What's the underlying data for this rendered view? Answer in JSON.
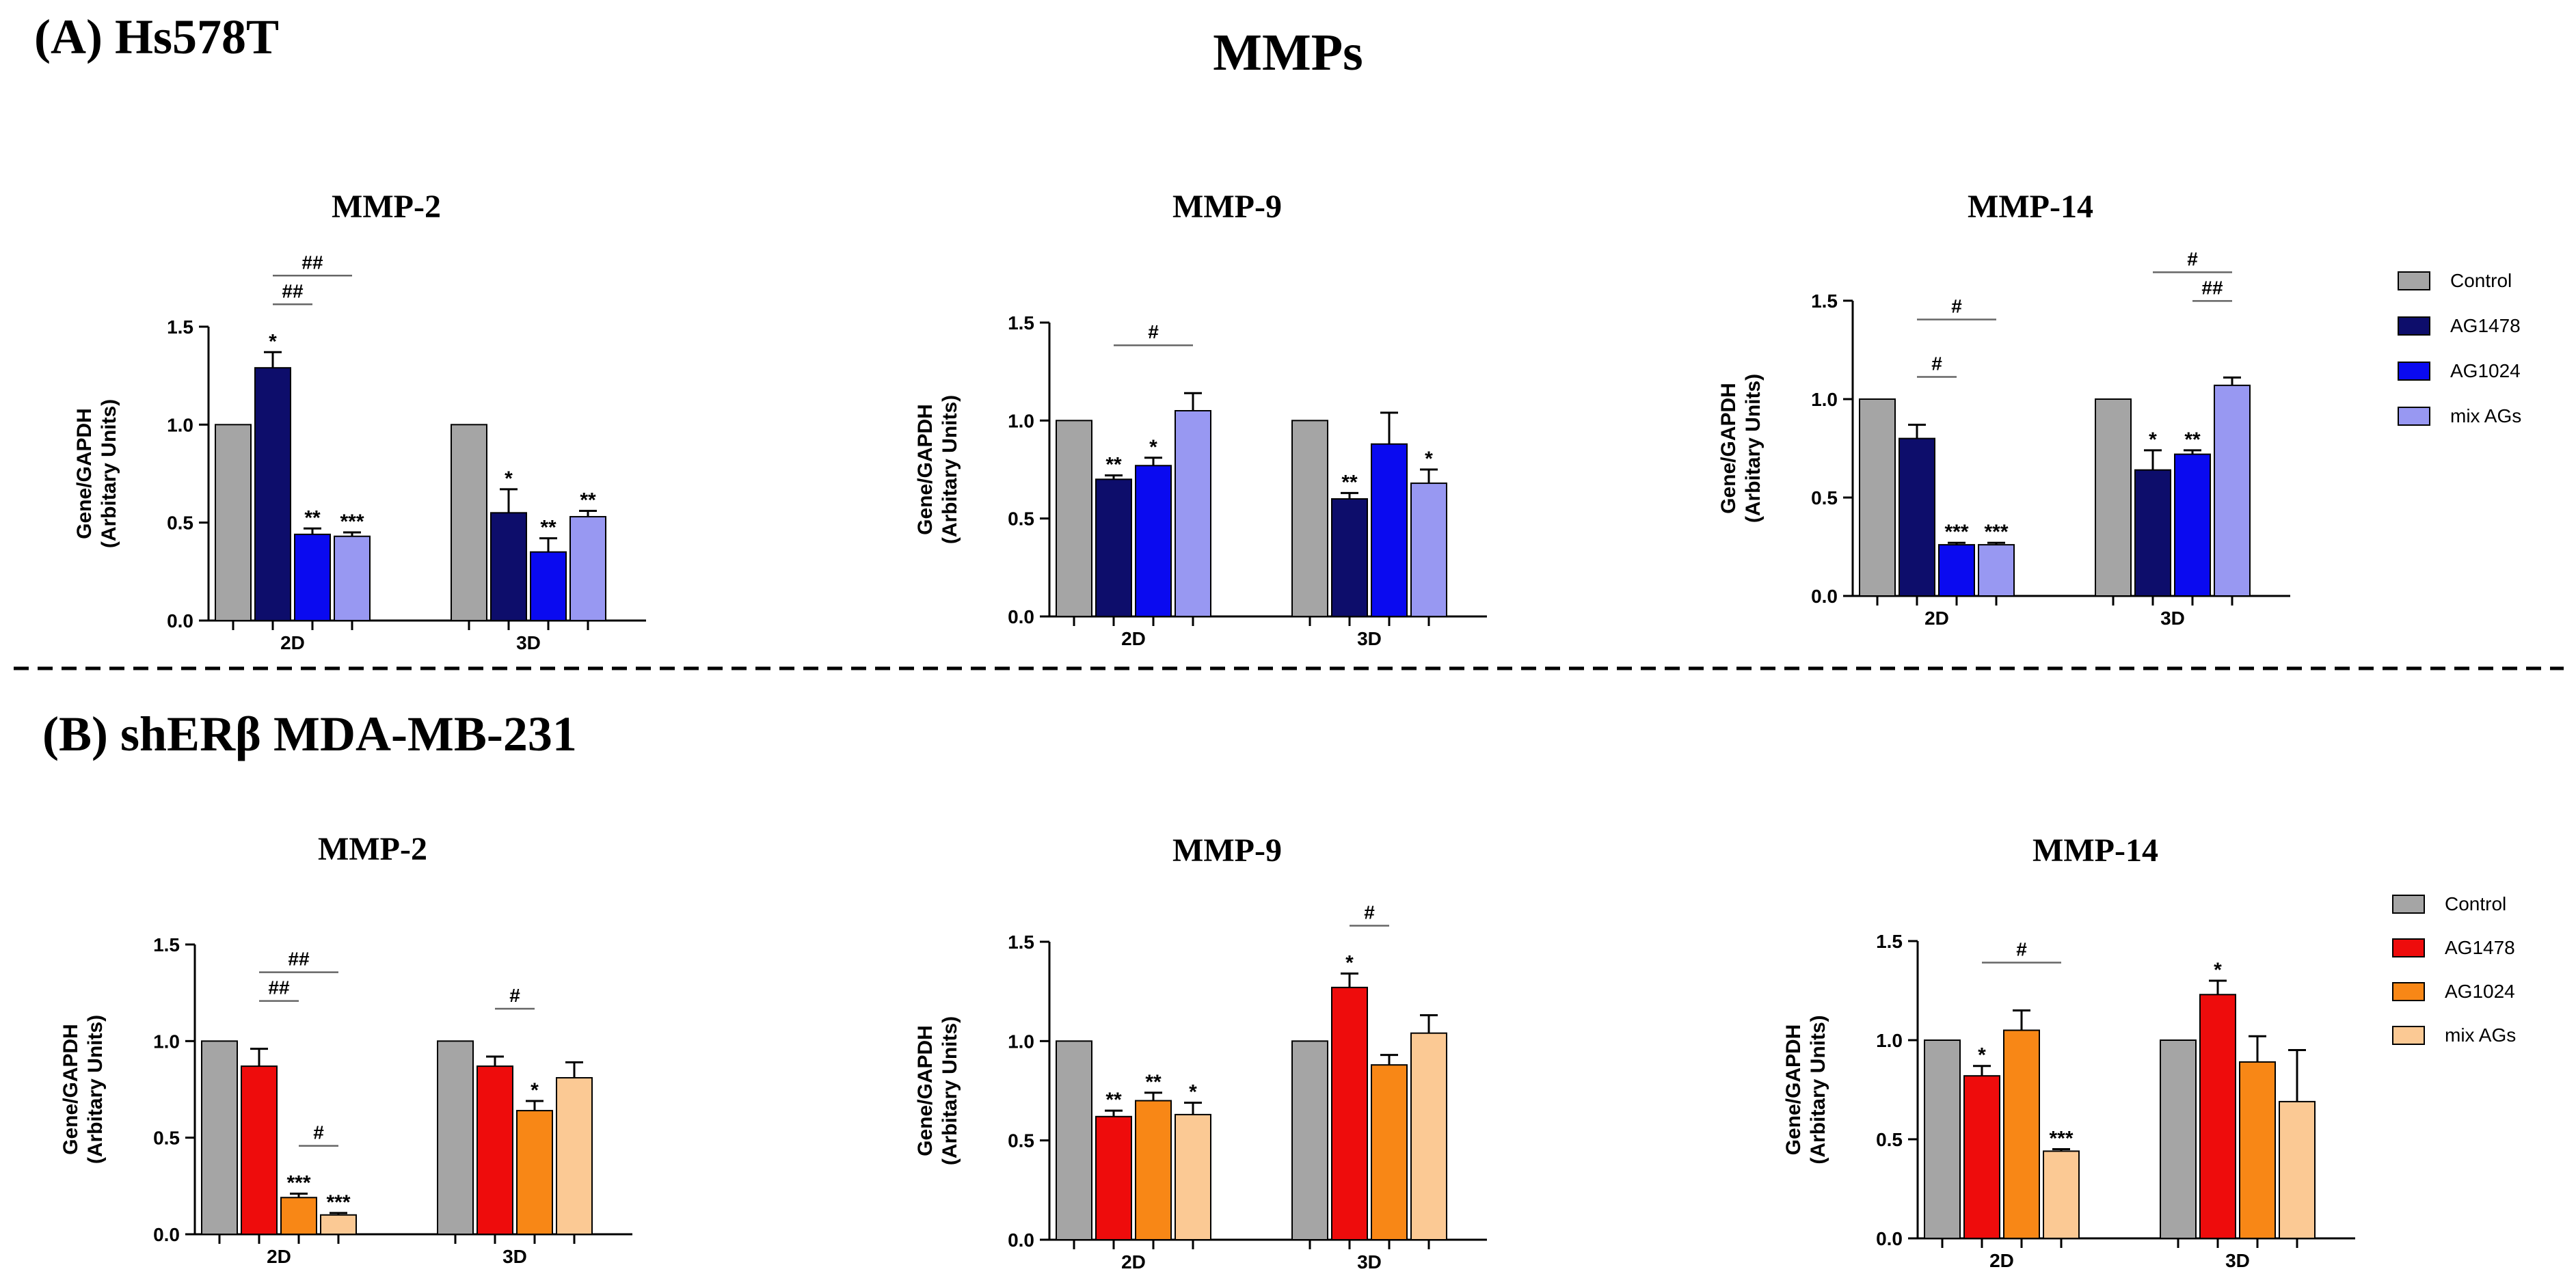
{
  "figure_title": "MMPs",
  "panel_a": {
    "label": "(A) Hs578T",
    "legend": [
      {
        "label": "Control",
        "color": "#a5a5a5"
      },
      {
        "label": "AG1478",
        "color": "#0d0d6b"
      },
      {
        "label": "AG1024",
        "color": "#0a0af0"
      },
      {
        "label": "mix AGs",
        "color": "#9898f2"
      }
    ]
  },
  "panel_b": {
    "label": "(B) shERβ MDA-MB-231",
    "legend": [
      {
        "label": "Control",
        "color": "#a5a5a5"
      },
      {
        "label": "AG1478",
        "color": "#ee0c0c"
      },
      {
        "label": "AG1024",
        "color": "#f88716"
      },
      {
        "label": "mix AGs",
        "color": "#fbc994"
      }
    ]
  },
  "chart_data": [
    {
      "panel": "A",
      "type": "bar",
      "title": "MMP-2",
      "ylabel": [
        "Gene/GAPDH",
        "(Arbitary Units)"
      ],
      "ylim": [
        0,
        1.5
      ],
      "yticks": [
        "0.0",
        "0.5",
        "1.0",
        "1.5"
      ],
      "categories": [
        "2D",
        "3D"
      ],
      "series": [
        {
          "name": "Control",
          "values": [
            1.0,
            1.0
          ],
          "errors": [
            0,
            0
          ],
          "stars": [
            "",
            ""
          ]
        },
        {
          "name": "AG1478",
          "values": [
            1.29,
            0.55
          ],
          "errors": [
            0.08,
            0.12
          ],
          "stars": [
            "*",
            "*"
          ]
        },
        {
          "name": "AG1024",
          "values": [
            0.44,
            0.35
          ],
          "errors": [
            0.03,
            0.07
          ],
          "stars": [
            "**",
            "**"
          ]
        },
        {
          "name": "mix AGs",
          "values": [
            0.43,
            0.53
          ],
          "errors": [
            0.02,
            0.03
          ],
          "stars": [
            "***",
            "**"
          ]
        }
      ],
      "comparisons": [
        {
          "category": 0,
          "from": 1,
          "to": 2,
          "label": "##",
          "level": 1
        },
        {
          "category": 0,
          "from": 1,
          "to": 3,
          "label": "##",
          "level": 2
        }
      ]
    },
    {
      "panel": "A",
      "type": "bar",
      "title": "MMP-9",
      "ylabel": [
        "Gene/GAPDH",
        "(Arbitary Units)"
      ],
      "ylim": [
        0,
        1.5
      ],
      "yticks": [
        "0.0",
        "0.5",
        "1.0",
        "1.5"
      ],
      "categories": [
        "2D",
        "3D"
      ],
      "series": [
        {
          "name": "Control",
          "values": [
            1.0,
            1.0
          ],
          "errors": [
            0,
            0
          ],
          "stars": [
            "",
            ""
          ]
        },
        {
          "name": "AG1478",
          "values": [
            0.7,
            0.6
          ],
          "errors": [
            0.02,
            0.03
          ],
          "stars": [
            "**",
            "**"
          ]
        },
        {
          "name": "AG1024",
          "values": [
            0.77,
            0.88
          ],
          "errors": [
            0.04,
            0.16
          ],
          "stars": [
            "*",
            ""
          ]
        },
        {
          "name": "mix AGs",
          "values": [
            1.05,
            0.68
          ],
          "errors": [
            0.09,
            0.07
          ],
          "stars": [
            "",
            "*"
          ]
        }
      ],
      "comparisons": [
        {
          "category": 0,
          "from": 1,
          "to": 3,
          "label": "#",
          "level": 1
        }
      ]
    },
    {
      "panel": "A",
      "type": "bar",
      "title": "MMP-14",
      "ylabel": [
        "Gene/GAPDH",
        "(Arbitary Units)"
      ],
      "ylim": [
        0,
        1.5
      ],
      "yticks": [
        "0.0",
        "0.5",
        "1.0",
        "1.5"
      ],
      "categories": [
        "2D",
        "3D"
      ],
      "series": [
        {
          "name": "Control",
          "values": [
            1.0,
            1.0
          ],
          "errors": [
            0,
            0
          ],
          "stars": [
            "",
            ""
          ]
        },
        {
          "name": "AG1478",
          "values": [
            0.8,
            0.64
          ],
          "errors": [
            0.07,
            0.1
          ],
          "stars": [
            "",
            "*"
          ]
        },
        {
          "name": "AG1024",
          "values": [
            0.26,
            0.72
          ],
          "errors": [
            0.01,
            0.02
          ],
          "stars": [
            "***",
            "**"
          ]
        },
        {
          "name": "mix AGs",
          "values": [
            0.26,
            1.07
          ],
          "errors": [
            0.01,
            0.04
          ],
          "stars": [
            "***",
            ""
          ]
        }
      ],
      "comparisons": [
        {
          "category": 0,
          "from": 1,
          "to": 2,
          "label": "#",
          "level": 1
        },
        {
          "category": 0,
          "from": 1,
          "to": 3,
          "label": "#",
          "level": 3
        },
        {
          "category": 1,
          "from": 2,
          "to": 3,
          "label": "##",
          "level": 2
        },
        {
          "category": 1,
          "from": 1,
          "to": 3,
          "label": "#",
          "level": 3
        }
      ]
    },
    {
      "panel": "B",
      "type": "bar",
      "title": "MMP-2",
      "ylabel": [
        "Gene/GAPDH",
        "(Arbitary Units)"
      ],
      "ylim": [
        0,
        1.5
      ],
      "yticks": [
        "0.0",
        "0.5",
        "1.0",
        "1.5"
      ],
      "categories": [
        "2D",
        "3D"
      ],
      "series": [
        {
          "name": "Control",
          "values": [
            1.0,
            1.0
          ],
          "errors": [
            0,
            0
          ],
          "stars": [
            "",
            ""
          ]
        },
        {
          "name": "AG1478",
          "values": [
            0.87,
            0.87
          ],
          "errors": [
            0.09,
            0.05
          ],
          "stars": [
            "",
            ""
          ]
        },
        {
          "name": "AG1024",
          "values": [
            0.19,
            0.64
          ],
          "errors": [
            0.02,
            0.05
          ],
          "stars": [
            "***",
            "*"
          ]
        },
        {
          "name": "mix AGs",
          "values": [
            0.1,
            0.81
          ],
          "errors": [
            0.01,
            0.08
          ],
          "stars": [
            "***",
            ""
          ]
        }
      ],
      "comparisons": [
        {
          "category": 0,
          "from": 1,
          "to": 2,
          "label": "##",
          "level": 1
        },
        {
          "category": 0,
          "from": 2,
          "to": 3,
          "label": "#",
          "level": 1
        },
        {
          "category": 0,
          "from": 1,
          "to": 3,
          "label": "##",
          "level": 2
        },
        {
          "category": 1,
          "from": 1,
          "to": 2,
          "label": "#",
          "level": 1
        }
      ]
    },
    {
      "panel": "B",
      "type": "bar",
      "title": "MMP-9",
      "ylabel": [
        "Gene/GAPDH",
        "(Arbitary Units)"
      ],
      "ylim": [
        0,
        1.5
      ],
      "yticks": [
        "0.0",
        "0.5",
        "1.0",
        "1.5"
      ],
      "categories": [
        "2D",
        "3D"
      ],
      "series": [
        {
          "name": "Control",
          "values": [
            1.0,
            1.0
          ],
          "errors": [
            0,
            0
          ],
          "stars": [
            "",
            ""
          ]
        },
        {
          "name": "AG1478",
          "values": [
            0.62,
            1.27
          ],
          "errors": [
            0.03,
            0.07
          ],
          "stars": [
            "**",
            "*"
          ]
        },
        {
          "name": "AG1024",
          "values": [
            0.7,
            0.88
          ],
          "errors": [
            0.04,
            0.05
          ],
          "stars": [
            "**",
            ""
          ]
        },
        {
          "name": "mix AGs",
          "values": [
            0.63,
            1.04
          ],
          "errors": [
            0.06,
            0.09
          ],
          "stars": [
            "*",
            ""
          ]
        }
      ],
      "comparisons": [
        {
          "category": 1,
          "from": 1,
          "to": 2,
          "label": "#",
          "level": 1
        }
      ]
    },
    {
      "panel": "B",
      "type": "bar",
      "title": "MMP-14",
      "ylabel": [
        "Gene/GAPDH",
        "(Arbitary Units)"
      ],
      "ylim": [
        0,
        1.5
      ],
      "yticks": [
        "0.0",
        "0.5",
        "1.0",
        "1.5"
      ],
      "categories": [
        "2D",
        "3D"
      ],
      "series": [
        {
          "name": "Control",
          "values": [
            1.0,
            1.0
          ],
          "errors": [
            0,
            0
          ],
          "stars": [
            "",
            ""
          ]
        },
        {
          "name": "AG1478",
          "values": [
            0.82,
            1.23
          ],
          "errors": [
            0.05,
            0.07
          ],
          "stars": [
            "*",
            "*"
          ]
        },
        {
          "name": "AG1024",
          "values": [
            1.05,
            0.89
          ],
          "errors": [
            0.1,
            0.13
          ],
          "stars": [
            "",
            ""
          ]
        },
        {
          "name": "mix AGs",
          "values": [
            0.44,
            0.69
          ],
          "errors": [
            0.01,
            0.26
          ],
          "stars": [
            "***",
            ""
          ]
        }
      ],
      "comparisons": [
        {
          "category": 0,
          "from": 1,
          "to": 3,
          "label": "#",
          "level": 1
        }
      ]
    }
  ]
}
